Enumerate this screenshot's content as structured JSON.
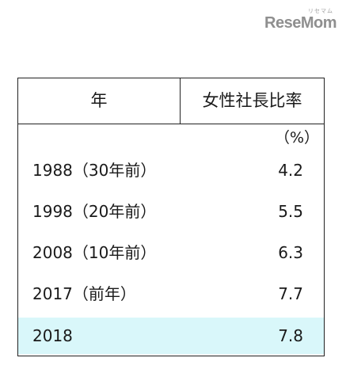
{
  "logo": {
    "small_text": "リセマム",
    "main_text": "ReseMom"
  },
  "table": {
    "header_year": "年",
    "header_ratio": "女性社長比率",
    "unit": "（%）",
    "rows": [
      {
        "year": "1988（30年前）",
        "value": "4.2"
      },
      {
        "year": "1998（20年前）",
        "value": "5.5"
      },
      {
        "year": "2008（10年前）",
        "value": "6.3"
      },
      {
        "year": "2017（前年）",
        "value": "7.7"
      },
      {
        "year": "2018",
        "value": "7.8"
      }
    ],
    "highlight_color": "#d9f7fa"
  }
}
